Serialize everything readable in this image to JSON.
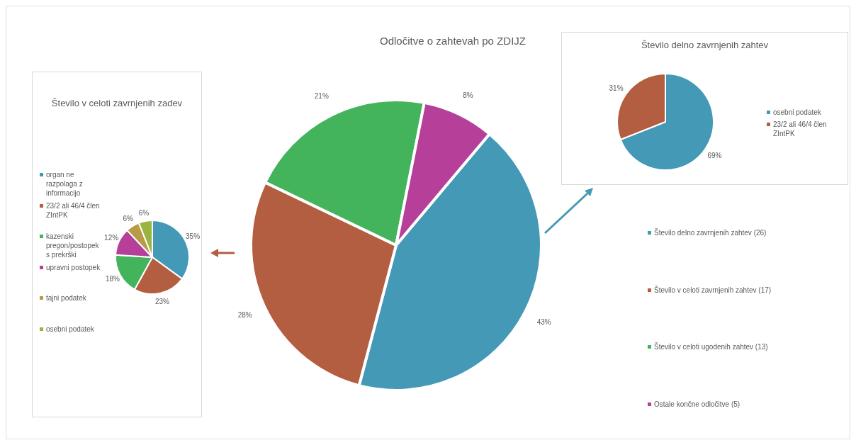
{
  "chart_data": [
    {
      "type": "pie",
      "title": "Število v celoti zavrnjenih zadev",
      "legend": "left",
      "categories": [
        "organ ne razpolaga z informacijo",
        "23/2 ali 46/4 člen ZIntPK",
        "kazenski pregon/postopek s prekrški",
        "upravni postopek",
        "tajni podatek",
        "osebni podatek"
      ],
      "values": [
        35,
        23,
        18,
        12,
        6,
        6
      ],
      "value_labels": [
        "35%",
        "23%",
        "18%",
        "12%",
        "6%",
        "6%"
      ],
      "colors": [
        "#4399b6",
        "#b35e40",
        "#43b45c",
        "#b53f99",
        "#b99a47",
        "#9ab53f"
      ]
    },
    {
      "type": "pie",
      "title": "Odločitve o zahtevah po ZDIJZ",
      "legend": "right",
      "categories": [
        "Število delno zavrnjenih zahtev (26)",
        "Število v celoti zavrnjenih zahtev (17)",
        "Število v celoti ugodenih zahtev (13)",
        "Ostale končne odločitve (5)"
      ],
      "values": [
        43,
        28,
        21,
        8
      ],
      "value_labels": [
        "43%",
        "28%",
        "21%",
        "8%"
      ],
      "colors": [
        "#4399b6",
        "#b35e40",
        "#43b45c",
        "#b53f99"
      ]
    },
    {
      "type": "pie",
      "title": "Število delno zavrnjenih zahtev",
      "legend": "right",
      "categories": [
        "osebni podatek",
        "23/2 ali 46/4 člen ZIntPK"
      ],
      "values": [
        69,
        31
      ],
      "value_labels": [
        "69%",
        "31%"
      ],
      "colors": [
        "#4399b6",
        "#b35e40"
      ]
    }
  ]
}
